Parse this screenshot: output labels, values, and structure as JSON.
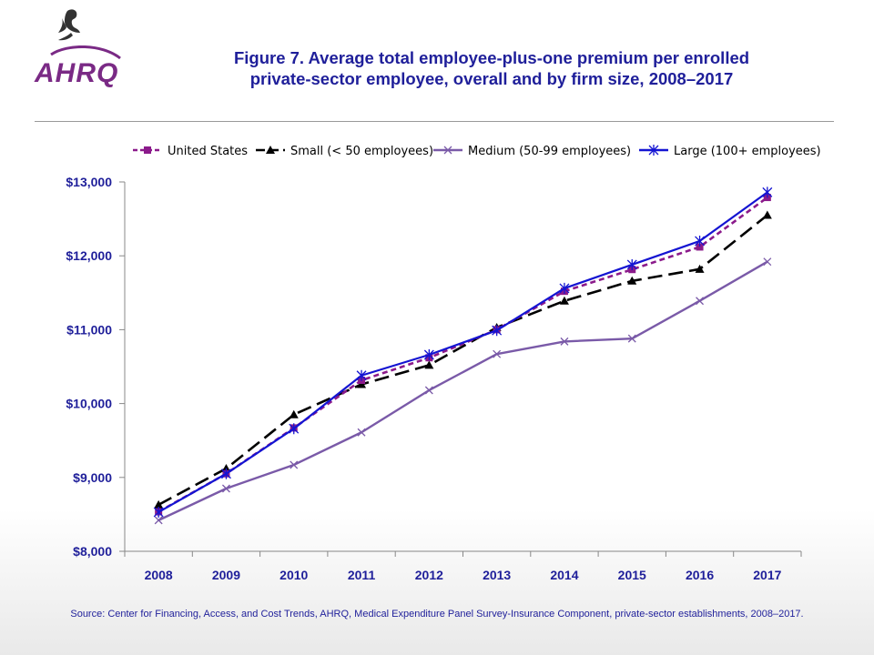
{
  "header": {
    "title_line1": "Figure 7. Average total employee-plus-one premium per enrolled",
    "title_line2": "private-sector employee, overall and by firm size, 2008–2017",
    "logo_text": "AHRQ",
    "logo_icon": "hhs-eagle-icon",
    "title_color": "#1f1f9a"
  },
  "footer": {
    "source": "Source: Center for Financing, Access, and Cost Trends, AHRQ, Medical Expenditure Panel Survey-Insurance Component, private-sector establishments, 2008–2017."
  },
  "chart_data": {
    "type": "line",
    "title": "",
    "xlabel": "",
    "ylabel": "",
    "categories": [
      "2008",
      "2009",
      "2010",
      "2011",
      "2012",
      "2013",
      "2014",
      "2015",
      "2016",
      "2017"
    ],
    "ylim": [
      8000,
      13000
    ],
    "yticks": [
      8000,
      9000,
      10000,
      11000,
      12000,
      13000
    ],
    "ytick_labels": [
      "$8,000",
      "$9,000",
      "$10,000",
      "$11,000",
      "$12,000",
      "$13,000"
    ],
    "grid": false,
    "legend_position": "top",
    "series": [
      {
        "name": "United States",
        "color": "#8b1a8b",
        "dash": "short-dash",
        "marker": "square",
        "values": [
          8535,
          9050,
          9670,
          10315,
          10620,
          11000,
          11520,
          11815,
          12120,
          12790
        ]
      },
      {
        "name": "Small (< 50 employees)",
        "color": "#000000",
        "dash": "long-dash",
        "marker": "triangle",
        "values": [
          8630,
          9120,
          9850,
          10260,
          10520,
          11030,
          11390,
          11660,
          11820,
          12550
        ]
      },
      {
        "name": "Medium (50-99 employees)",
        "color": "#7a5aa8",
        "dash": "solid",
        "marker": "x",
        "values": [
          8420,
          8850,
          9170,
          9610,
          10180,
          10670,
          10840,
          10880,
          11390,
          11920
        ]
      },
      {
        "name": "Large (100+ employees)",
        "color": "#1414d2",
        "dash": "solid",
        "marker": "star",
        "values": [
          8530,
          9050,
          9660,
          10380,
          10660,
          10990,
          11560,
          11880,
          12200,
          12860
        ]
      }
    ]
  }
}
